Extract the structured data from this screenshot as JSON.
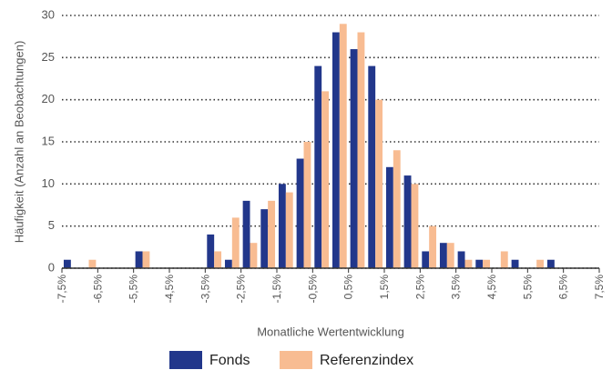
{
  "chart_data": {
    "type": "histogram",
    "y_label": "Häufigkeit (Anzahl an Beobachtungen)",
    "x_label": "Monatliche Wertentwicklung",
    "bins": [
      -7.5,
      -7,
      -6.5,
      -6,
      -5.5,
      -5,
      -4.5,
      -4,
      -3.5,
      -3,
      -2.5,
      -2,
      -1.5,
      -1,
      -0.5,
      0,
      0.5,
      1,
      1.5,
      2,
      2.5,
      3,
      3.5,
      4,
      4.5,
      5,
      5.5,
      6,
      6.5,
      7,
      7.5
    ],
    "series": [
      {
        "name": "Fonds",
        "color": "#22378b",
        "values": [
          1,
          0,
          0,
          0,
          2,
          0,
          0,
          0,
          4,
          1,
          8,
          7,
          10,
          13,
          24,
          28,
          26,
          24,
          12,
          11,
          2,
          3,
          2,
          1,
          0,
          1,
          0,
          1,
          0,
          0
        ]
      },
      {
        "name": "Referenzindex",
        "color": "#f8bc92",
        "values": [
          0,
          1,
          0,
          0,
          2,
          0,
          0,
          0,
          2,
          6,
          3,
          8,
          9,
          15,
          21,
          29,
          28,
          20,
          14,
          10,
          5,
          3,
          1,
          1,
          2,
          0,
          1,
          0,
          0,
          0
        ]
      }
    ],
    "xlim": [
      -7.5,
      7.5
    ],
    "xticks": [
      {
        "value": -7.5,
        "label": "-7,5%"
      },
      {
        "value": -6.5,
        "label": "-6,5%"
      },
      {
        "value": -5.5,
        "label": "-5,5%"
      },
      {
        "value": -4.5,
        "label": "-4,5%"
      },
      {
        "value": -3.5,
        "label": "-3,5%"
      },
      {
        "value": -2.5,
        "label": "-2,5%"
      },
      {
        "value": -1.5,
        "label": "-1,5%"
      },
      {
        "value": -0.5,
        "label": "-0,5%"
      },
      {
        "value": 0.5,
        "label": "0,5%"
      },
      {
        "value": 1.5,
        "label": "1,5%"
      },
      {
        "value": 2.5,
        "label": "2,5%"
      },
      {
        "value": 3.5,
        "label": "3,5%"
      },
      {
        "value": 4.5,
        "label": "4,5%"
      },
      {
        "value": 5.5,
        "label": "5,5%"
      },
      {
        "value": 6.5,
        "label": "6,5%"
      },
      {
        "value": 7.5,
        "label": "7,5%"
      }
    ],
    "ylim": [
      0,
      30
    ],
    "yticks": [
      0,
      5,
      10,
      15,
      20,
      25,
      30
    ],
    "grid": true,
    "legend": "bottom"
  }
}
